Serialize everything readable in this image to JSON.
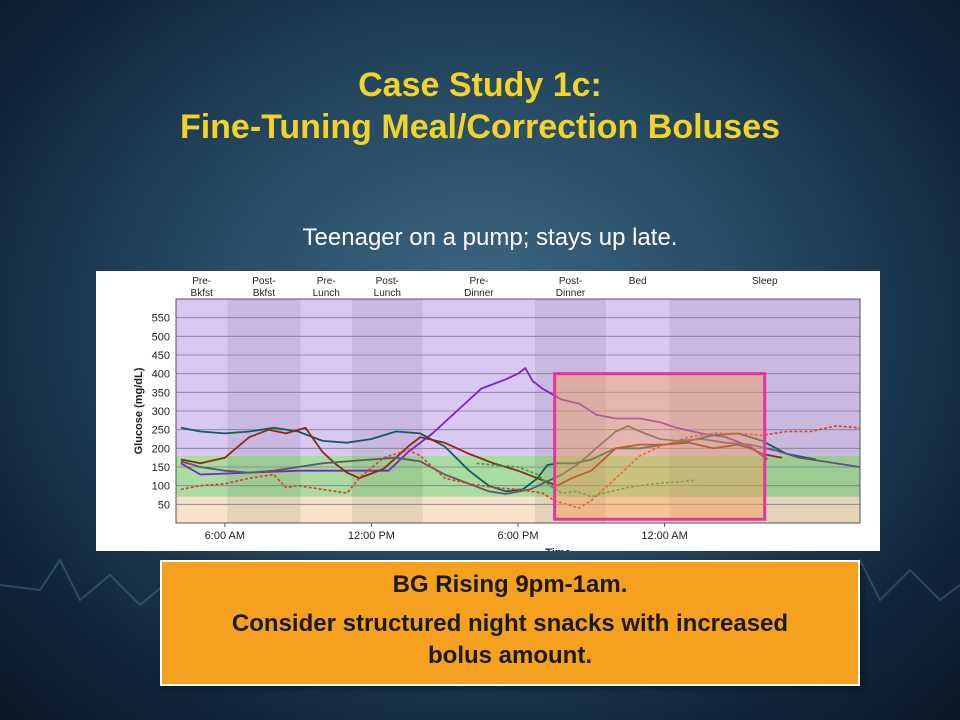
{
  "slide": {
    "title_line1": "Case Study 1c:",
    "title_line2": "Fine-Tuning Meal/Correction Boluses",
    "subtitle": "Teenager on a pump; stays up late."
  },
  "callout": {
    "line1": "BG Rising 9pm-1am.",
    "line2": "Consider structured night snacks with increased bolus amount."
  },
  "colors": {
    "title": "#f2d32a",
    "callout_bg": "#f5a01f",
    "highlight_box": "#e8339a",
    "target_band": "#a8dca0",
    "high_band": "#d9c8f2",
    "low_band": "#f7e3c7"
  },
  "chart_data": {
    "type": "line",
    "ylabel": "Glucose (mg/dL)",
    "xlabel": "Time",
    "ylim": [
      0,
      600
    ],
    "yticks": [
      50,
      100,
      150,
      200,
      250,
      300,
      350,
      400,
      450,
      500,
      550
    ],
    "xlim_hours": [
      4,
      32
    ],
    "xticks": [
      {
        "label": "6:00 AM",
        "h": 6
      },
      {
        "label": "12:00 PM",
        "h": 12
      },
      {
        "label": "6:00 PM",
        "h": 18
      },
      {
        "label": "12:00 AM",
        "h": 24
      }
    ],
    "periods": [
      {
        "label": "Pre-\nBkfst",
        "start": 4.0,
        "end": 6.1
      },
      {
        "label": "Post-\nBkfst",
        "start": 6.1,
        "end": 9.1
      },
      {
        "label": "Pre-\nLunch",
        "start": 9.1,
        "end": 11.2
      },
      {
        "label": "Post-\nLunch",
        "start": 11.2,
        "end": 14.1
      },
      {
        "label": "Pre-\nDinner",
        "start": 14.1,
        "end": 18.7
      },
      {
        "label": "Post-\nDinner",
        "start": 18.7,
        "end": 21.6
      },
      {
        "label": "Bed",
        "start": 21.6,
        "end": 24.2
      },
      {
        "label": "Sleep",
        "start": 24.2,
        "end": 32.0
      }
    ],
    "bands": {
      "target": [
        70,
        180
      ],
      "high_start": 180,
      "low_top": 70
    },
    "highlight": {
      "x_start": 19.5,
      "x_end": 28.1,
      "y_bottom": 10,
      "y_top": 400
    },
    "series": [
      {
        "color": "#7a24c8",
        "dashed": false,
        "points": [
          [
            4.2,
            160
          ],
          [
            5,
            130
          ],
          [
            7,
            135
          ],
          [
            9,
            140
          ],
          [
            11,
            140
          ],
          [
            12.7,
            140
          ],
          [
            13.5,
            190
          ],
          [
            14.5,
            240
          ],
          [
            15.5,
            300
          ],
          [
            16.5,
            360
          ],
          [
            17.5,
            385
          ],
          [
            18.0,
            400
          ],
          [
            18.3,
            415
          ],
          [
            18.6,
            380
          ],
          [
            19,
            360
          ],
          [
            19.8,
            330
          ],
          [
            20.5,
            320
          ],
          [
            21.2,
            290
          ],
          [
            22,
            280
          ],
          [
            23,
            280
          ],
          [
            23.8,
            270
          ],
          [
            24.5,
            255
          ],
          [
            25.5,
            240
          ],
          [
            26.5,
            230
          ],
          [
            27.5,
            205
          ],
          [
            28.2,
            170
          ]
        ]
      },
      {
        "color": "#0f5d5d",
        "dashed": false,
        "points": [
          [
            4.2,
            255
          ],
          [
            5,
            245
          ],
          [
            6,
            240
          ],
          [
            7,
            245
          ],
          [
            8,
            255
          ],
          [
            9,
            245
          ],
          [
            10,
            220
          ],
          [
            11,
            215
          ],
          [
            12,
            225
          ],
          [
            13,
            245
          ],
          [
            14,
            240
          ],
          [
            15,
            205
          ],
          [
            16,
            140
          ],
          [
            16.8,
            100
          ],
          [
            17.5,
            85
          ],
          [
            18.2,
            90
          ],
          [
            18.8,
            120
          ],
          [
            19.2,
            155
          ],
          [
            19.6,
            160
          ],
          [
            20.3,
            160
          ],
          [
            21,
            170
          ],
          [
            22,
            200
          ],
          [
            23,
            200
          ],
          [
            24,
            210
          ],
          [
            25,
            220
          ],
          [
            26,
            235
          ],
          [
            27,
            240
          ],
          [
            28,
            220
          ],
          [
            29,
            185
          ],
          [
            30.2,
            170
          ]
        ]
      },
      {
        "color": "#8b2a16",
        "dashed": false,
        "points": [
          [
            4.2,
            170
          ],
          [
            5,
            160
          ],
          [
            6,
            175
          ],
          [
            7,
            230
          ],
          [
            7.8,
            250
          ],
          [
            8.5,
            240
          ],
          [
            9.3,
            255
          ],
          [
            10,
            190
          ],
          [
            10.5,
            160
          ],
          [
            11,
            135
          ],
          [
            11.5,
            120
          ],
          [
            12.5,
            145
          ],
          [
            13.5,
            205
          ],
          [
            14,
            230
          ],
          [
            15,
            215
          ],
          [
            16,
            185
          ],
          [
            17,
            160
          ],
          [
            18,
            140
          ],
          [
            19,
            115
          ],
          [
            19.6,
            100
          ],
          [
            20.2,
            120
          ],
          [
            21,
            140
          ],
          [
            22,
            200
          ],
          [
            23,
            210
          ],
          [
            24,
            210
          ],
          [
            25,
            215
          ],
          [
            26,
            200
          ],
          [
            27,
            210
          ],
          [
            27.5,
            200
          ],
          [
            28,
            185
          ],
          [
            28.8,
            175
          ]
        ]
      },
      {
        "color": "#5a5a6e",
        "dashed": false,
        "points": [
          [
            4.2,
            165
          ],
          [
            5,
            150
          ],
          [
            6,
            140
          ],
          [
            7,
            135
          ],
          [
            8,
            140
          ],
          [
            9,
            150
          ],
          [
            10,
            160
          ],
          [
            11,
            165
          ],
          [
            12,
            170
          ],
          [
            13,
            175
          ],
          [
            14,
            165
          ],
          [
            15,
            130
          ],
          [
            16,
            105
          ],
          [
            16.8,
            85
          ],
          [
            17.5,
            78
          ],
          [
            18.5,
            90
          ],
          [
            19.3,
            115
          ],
          [
            19.8,
            130
          ],
          [
            20.5,
            160
          ],
          [
            21.2,
            200
          ],
          [
            22,
            245
          ],
          [
            22.5,
            260
          ],
          [
            23,
            245
          ],
          [
            23.8,
            225
          ],
          [
            24.5,
            220
          ],
          [
            25.5,
            225
          ],
          [
            26.5,
            215
          ],
          [
            27.5,
            210
          ],
          [
            28.5,
            195
          ],
          [
            29.5,
            175
          ],
          [
            30.5,
            165
          ],
          [
            32,
            150
          ]
        ]
      },
      {
        "color": "#e83a1f",
        "dashed": true,
        "points": [
          [
            4.2,
            90
          ],
          [
            5,
            100
          ],
          [
            6,
            105
          ],
          [
            7,
            120
          ],
          [
            8,
            130
          ],
          [
            8.5,
            95
          ],
          [
            9,
            100
          ],
          [
            10,
            90
          ],
          [
            11,
            80
          ],
          [
            11.5,
            120
          ],
          [
            12.5,
            175
          ],
          [
            13.5,
            195
          ],
          [
            14,
            180
          ],
          [
            15,
            120
          ],
          [
            16,
            105
          ],
          [
            17,
            95
          ],
          [
            18,
            90
          ],
          [
            19,
            80
          ],
          [
            19.5,
            60
          ],
          [
            20,
            50
          ],
          [
            20.5,
            40
          ],
          [
            21,
            60
          ],
          [
            22,
            120
          ],
          [
            23,
            180
          ],
          [
            24,
            210
          ],
          [
            25,
            230
          ],
          [
            26,
            240
          ],
          [
            27,
            240
          ],
          [
            28,
            235
          ],
          [
            29,
            245
          ],
          [
            30,
            245
          ],
          [
            31,
            260
          ],
          [
            32,
            255
          ]
        ]
      },
      {
        "color": "#1ea73a",
        "dashed": true,
        "points": [
          [
            16.3,
            160
          ],
          [
            17,
            155
          ],
          [
            18,
            150
          ],
          [
            18.8,
            130
          ],
          [
            19.3,
            100
          ],
          [
            19.8,
            80
          ],
          [
            20.4,
            85
          ],
          [
            21,
            70
          ],
          [
            21.5,
            80
          ],
          [
            22.5,
            95
          ],
          [
            23.5,
            105
          ],
          [
            24.5,
            110
          ],
          [
            25.3,
            115
          ]
        ]
      }
    ]
  }
}
